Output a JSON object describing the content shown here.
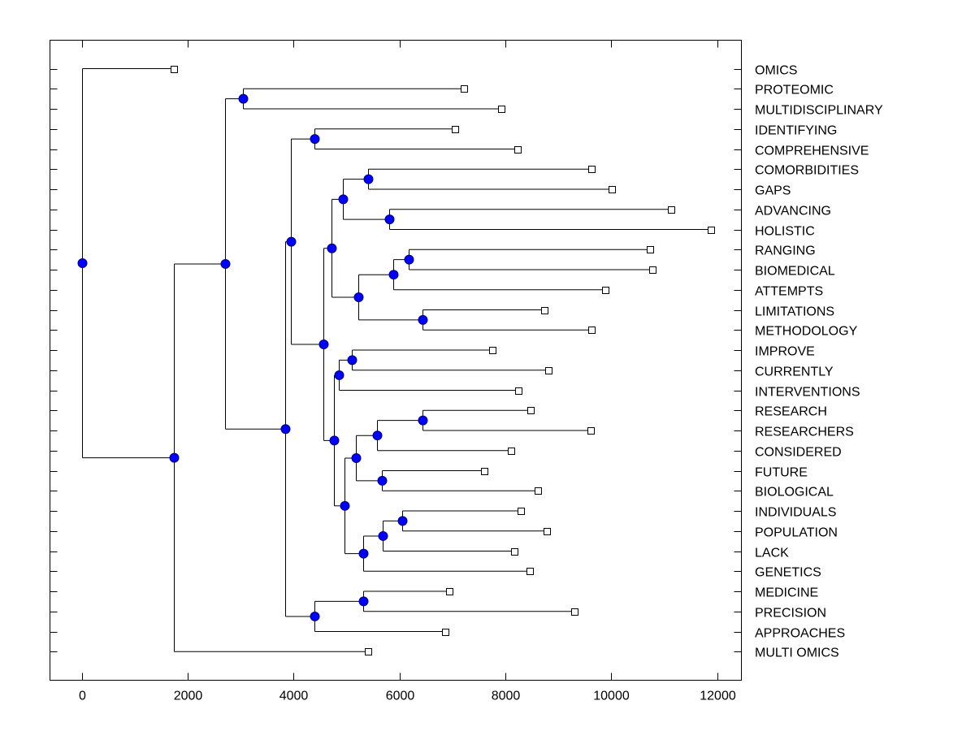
{
  "chart_data": {
    "type": "dendrogram",
    "title": "",
    "xlabel": "",
    "ylabel": "",
    "xlim": [
      -600,
      12460
    ],
    "x_ticks": [
      0,
      2000,
      4000,
      6000,
      8000,
      10000,
      12000
    ],
    "x_tick_labels": [
      "0",
      "2000",
      "4000",
      "6000",
      "8000",
      "10000",
      "12000"
    ],
    "grid": false,
    "leaf_label_side": "right",
    "colors": {
      "node_fill": "#0000ff",
      "node_stroke": "#00007a",
      "line": "#000000",
      "leaf_fill": "#ffffff"
    },
    "leaves": [
      {
        "label": "OMICS",
        "x": 1734
      },
      {
        "label": "PROTEOMIC",
        "x": 7212
      },
      {
        "label": "MULTIDISCIPLINARY",
        "x": 7918
      },
      {
        "label": "IDENTIFYING",
        "x": 7043
      },
      {
        "label": "COMPREHENSIVE",
        "x": 8225
      },
      {
        "label": "COMORBIDITIES",
        "x": 9621
      },
      {
        "label": "GAPS",
        "x": 10005
      },
      {
        "label": "ADVANCING",
        "x": 11140
      },
      {
        "label": "HOLISTIC",
        "x": 11877
      },
      {
        "label": "RANGING",
        "x": 10726
      },
      {
        "label": "BIOMEDICAL",
        "x": 10772
      },
      {
        "label": "ATTEMPTS",
        "x": 9882
      },
      {
        "label": "LIMITATIONS",
        "x": 8731
      },
      {
        "label": "METHODOLOGY",
        "x": 9636
      },
      {
        "label": "IMPROVE",
        "x": 7749
      },
      {
        "label": "CURRENTLY",
        "x": 8808
      },
      {
        "label": "INTERVENTIONS",
        "x": 8240
      },
      {
        "label": "RESEARCH",
        "x": 8470
      },
      {
        "label": "RESEARCHERS",
        "x": 9606
      },
      {
        "label": "CONSIDERED",
        "x": 8102
      },
      {
        "label": "FUTURE",
        "x": 7596
      },
      {
        "label": "BIOLOGICAL",
        "x": 8608
      },
      {
        "label": "INDIVIDUALS",
        "x": 8286
      },
      {
        "label": "POPULATION",
        "x": 8777
      },
      {
        "label": "LACK",
        "x": 8163
      },
      {
        "label": "GENETICS",
        "x": 8455
      },
      {
        "label": "MEDICINE",
        "x": 6936
      },
      {
        "label": "PRECISION",
        "x": 9299
      },
      {
        "label": "APPROACHES",
        "x": 6859
      },
      {
        "label": "MULTI OMICS",
        "x": 5401
      }
    ],
    "tree": {
      "x": 0,
      "children": [
        {
          "leaf": 0
        },
        {
          "x": 1734,
          "children": [
            {
              "x": 2700,
              "children": [
                {
                  "x": 3040,
                  "children": [
                    {
                      "leaf": 1
                    },
                    {
                      "leaf": 2
                    }
                  ]
                },
                {
                  "x": 3850,
                  "children": [
                    {
                      "x": 3950,
                      "children": [
                        {
                          "x": 4390,
                          "children": [
                            {
                              "leaf": 3
                            },
                            {
                              "leaf": 4
                            }
                          ]
                        },
                        {
                          "x": 4560,
                          "children": [
                            {
                              "x": 4710,
                              "children": [
                                {
                                  "x": 4940,
                                  "children": [
                                    {
                                      "x": 5410,
                                      "children": [
                                        {
                                          "leaf": 5
                                        },
                                        {
                                          "leaf": 6
                                        }
                                      ]
                                    },
                                    {
                                      "x": 5810,
                                      "children": [
                                        {
                                          "leaf": 7
                                        },
                                        {
                                          "leaf": 8
                                        }
                                      ]
                                    }
                                  ]
                                },
                                {
                                  "x": 5230,
                                  "children": [
                                    {
                                      "x": 5880,
                                      "children": [
                                        {
                                          "x": 6170,
                                          "children": [
                                            {
                                              "leaf": 9
                                            },
                                            {
                                              "leaf": 10
                                            }
                                          ]
                                        },
                                        {
                                          "leaf": 11
                                        }
                                      ]
                                    },
                                    {
                                      "x": 6440,
                                      "children": [
                                        {
                                          "leaf": 12
                                        },
                                        {
                                          "leaf": 13
                                        }
                                      ]
                                    }
                                  ]
                                }
                              ]
                            },
                            {
                              "x": 4760,
                              "children": [
                                {
                                  "x": 4850,
                                  "children": [
                                    {
                                      "x": 5100,
                                      "children": [
                                        {
                                          "leaf": 14
                                        },
                                        {
                                          "leaf": 15
                                        }
                                      ]
                                    },
                                    {
                                      "leaf": 16
                                    }
                                  ]
                                },
                                {
                                  "x": 4970,
                                  "children": [
                                    {
                                      "x": 5180,
                                      "children": [
                                        {
                                          "x": 5580,
                                          "children": [
                                            {
                                              "x": 6440,
                                              "children": [
                                                {
                                                  "leaf": 17
                                                },
                                                {
                                                  "leaf": 18
                                                }
                                              ]
                                            },
                                            {
                                              "leaf": 19
                                            }
                                          ]
                                        },
                                        {
                                          "x": 5670,
                                          "children": [
                                            {
                                              "leaf": 20
                                            },
                                            {
                                              "leaf": 21
                                            }
                                          ]
                                        }
                                      ]
                                    },
                                    {
                                      "x": 5310,
                                      "children": [
                                        {
                                          "x": 5690,
                                          "children": [
                                            {
                                              "x": 6060,
                                              "children": [
                                                {
                                                  "leaf": 22
                                                },
                                                {
                                                  "leaf": 23
                                                }
                                              ]
                                            },
                                            {
                                              "leaf": 24
                                            }
                                          ]
                                        },
                                        {
                                          "leaf": 25
                                        }
                                      ]
                                    }
                                  ]
                                }
                              ]
                            }
                          ]
                        }
                      ]
                    },
                    {
                      "x": 4390,
                      "children": [
                        {
                          "x": 5310,
                          "children": [
                            {
                              "leaf": 26
                            },
                            {
                              "leaf": 27
                            }
                          ]
                        },
                        {
                          "leaf": 28
                        }
                      ]
                    }
                  ]
                }
              ]
            },
            {
              "leaf": 29
            }
          ]
        }
      ]
    }
  }
}
